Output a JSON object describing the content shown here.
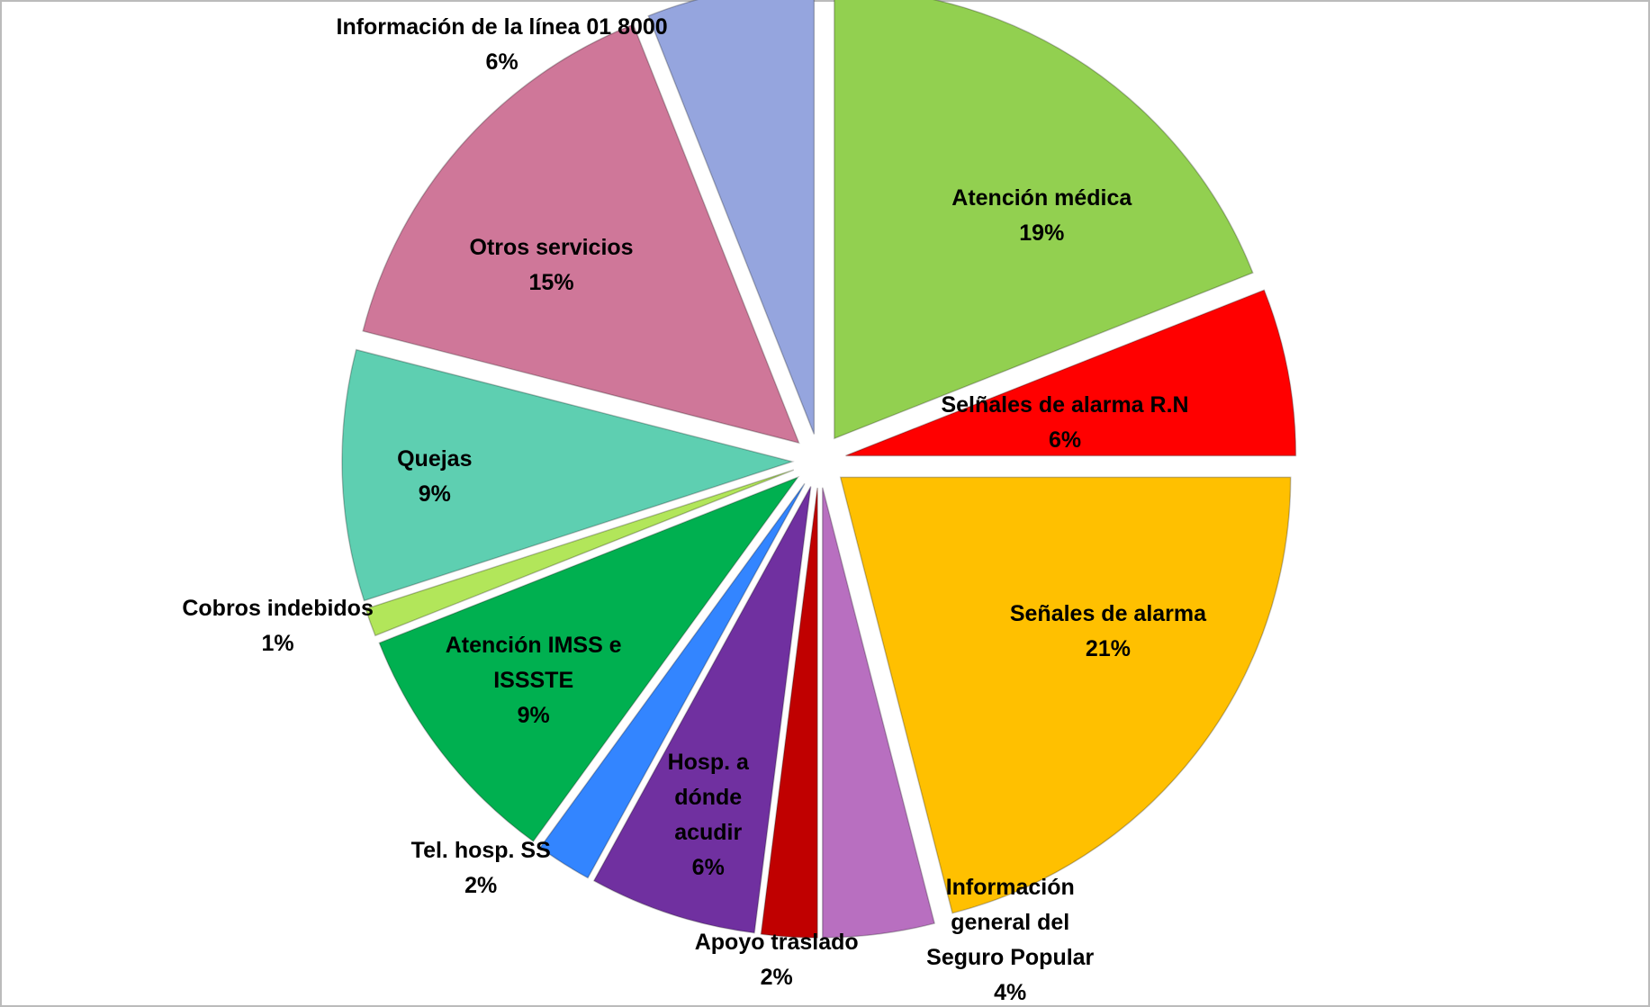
{
  "chart_data": {
    "type": "pie",
    "categories": [
      "Atención médica",
      "Selñales de alarma R.N",
      "Señales de alarma",
      "Información general del Seguro Popular",
      "Apoyo traslado",
      "Hosp. a dónde acudir",
      "Tel. hosp. SS",
      "Atención IMSS e ISSSTE",
      "Cobros indebidos",
      "Quejas",
      "Otros servicios",
      "Información de la línea 01 8000"
    ],
    "values": [
      19,
      6,
      21,
      4,
      2,
      6,
      2,
      9,
      1,
      9,
      15,
      6
    ],
    "value_labels": [
      "19%",
      "6%",
      "21%",
      "4%",
      "2%",
      "6%",
      "2%",
      "9%",
      "1%",
      "9%",
      "15%",
      "6%"
    ],
    "colors": [
      "#92d050",
      "#ff0000",
      "#ffc000",
      "#b86fc0",
      "#c00000",
      "#7030a0",
      "#3385ff",
      "#00b050",
      "#b2e65a",
      "#5ecfb1",
      "#cf7799",
      "#95a5de"
    ]
  }
}
